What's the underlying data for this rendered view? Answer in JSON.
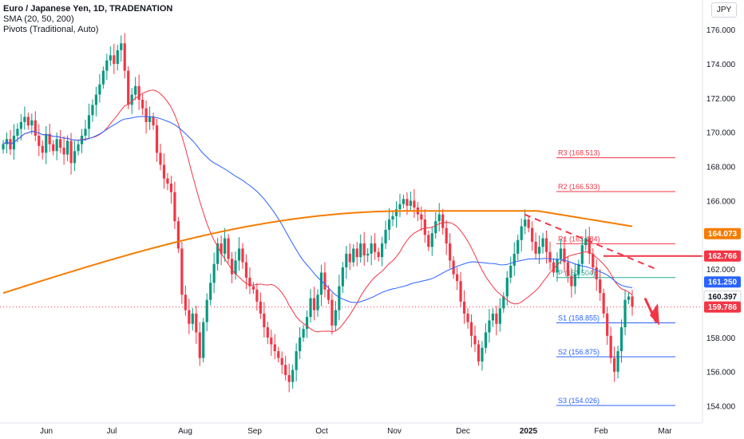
{
  "header": {
    "title": "Euro / Japanese Yen, 1D, TRADENATION",
    "indicator1": "SMA (20, 50, 200)",
    "indicator2": "Pivots (Traditional, Auto)",
    "currency": "JPY"
  },
  "chart_data": {
    "type": "candlestick",
    "x_ticks": [
      "Jun",
      "Jul",
      "Aug",
      "Sep",
      "Oct",
      "Nov",
      "Dec",
      "2025",
      "Feb",
      "Mar"
    ],
    "y_ticks": [
      "154.000",
      "156.000",
      "158.000",
      "160.000",
      "162.000",
      "164.000",
      "166.000",
      "168.000",
      "170.000",
      "172.000",
      "174.000",
      "176.000"
    ],
    "ylim": [
      153.0,
      176.8
    ],
    "colors": {
      "up": "#089981",
      "down": "#f23645",
      "sma20": "#f23645",
      "sma50": "#2962ff",
      "sma200": "#f57c00",
      "pivot_r": "#f23645",
      "pivot_s": "#2962ff",
      "pivot_p": "#22ab94"
    },
    "pivots": [
      {
        "label": "R3 (168.513)",
        "value": 168.513,
        "kind": "r"
      },
      {
        "label": "R2 (166.533)",
        "value": 166.533,
        "kind": "r"
      },
      {
        "label": "R1 (163.484)",
        "value": 163.484,
        "kind": "r"
      },
      {
        "label": "P (161.504)",
        "value": 161.504,
        "kind": "p"
      },
      {
        "label": "S1 (158.855)",
        "value": 158.855,
        "kind": "s"
      },
      {
        "label": "S2 (156.875)",
        "value": 156.875,
        "kind": "s"
      },
      {
        "label": "S3 (154.026)",
        "value": 154.026,
        "kind": "s"
      }
    ],
    "price_tags": [
      {
        "text": "164.073",
        "value": 164.073,
        "color": "#f57c00"
      },
      {
        "text": "162.766",
        "value": 162.766,
        "color": "#f23645"
      },
      {
        "text": "161.250",
        "value": 161.25,
        "color": "#2962ff"
      },
      {
        "text": "160.397",
        "value": 160.397,
        "color": "#131722",
        "bg": "#ffffff"
      },
      {
        "text": "159.786",
        "value": 159.786,
        "color": "#f23645"
      }
    ],
    "resistance_level": 162.766,
    "current_price": 159.786,
    "closes": [
      169.3,
      169.6,
      169.0,
      169.8,
      170.2,
      170.6,
      170.9,
      170.4,
      170.7,
      169.8,
      169.2,
      168.8,
      169.9,
      169.3,
      168.9,
      169.6,
      169.1,
      168.7,
      169.5,
      168.2,
      168.9,
      169.3,
      169.8,
      170.2,
      171.0,
      171.6,
      172.2,
      172.8,
      173.6,
      174.2,
      174.5,
      174.0,
      174.8,
      175.2,
      173.6,
      171.6,
      172.2,
      172.7,
      171.9,
      171.4,
      170.6,
      170.9,
      170.4,
      168.8,
      168.1,
      167.3,
      167.0,
      166.5,
      164.8,
      163.2,
      160.5,
      159.6,
      158.8,
      159.4,
      158.3,
      156.8,
      158.9,
      160.2,
      161.2,
      162.3,
      163.5,
      162.9,
      163.8,
      162.6,
      161.7,
      162.5,
      163.2,
      162.4,
      161.5,
      161.0,
      160.8,
      160.1,
      159.4,
      158.6,
      158.0,
      157.6,
      157.2,
      156.8,
      156.4,
      155.8,
      155.4,
      156.1,
      157.2,
      158.0,
      158.5,
      159.2,
      160.3,
      159.6,
      160.5,
      161.8,
      160.8,
      160.2,
      158.7,
      159.6,
      161.0,
      162.1,
      162.9,
      162.4,
      163.2,
      162.7,
      163.5,
      162.8,
      162.9,
      163.5,
      163.0,
      162.7,
      163.5,
      164.3,
      164.9,
      165.1,
      165.5,
      165.8,
      166.1,
      165.7,
      166.0,
      165.6,
      165.2,
      164.9,
      164.0,
      163.3,
      164.1,
      164.8,
      165.2,
      164.4,
      163.5,
      162.5,
      161.7,
      161.3,
      160.1,
      159.4,
      158.9,
      158.1,
      157.6,
      156.6,
      157.4,
      158.3,
      159.0,
      159.4,
      158.8,
      159.7,
      160.4,
      161.5,
      162.2,
      162.9,
      163.7,
      164.5,
      164.9,
      164.4,
      163.6,
      162.9,
      163.3,
      163.8,
      163.0,
      162.4,
      161.8,
      162.6,
      163.2,
      162.4,
      161.6,
      161.0,
      161.7,
      162.3,
      163.4,
      163.8,
      162.9,
      162.1,
      161.4,
      160.6,
      159.4,
      158.1,
      156.8,
      156.0,
      157.2,
      158.6,
      160.2,
      160.4,
      159.8
    ]
  }
}
